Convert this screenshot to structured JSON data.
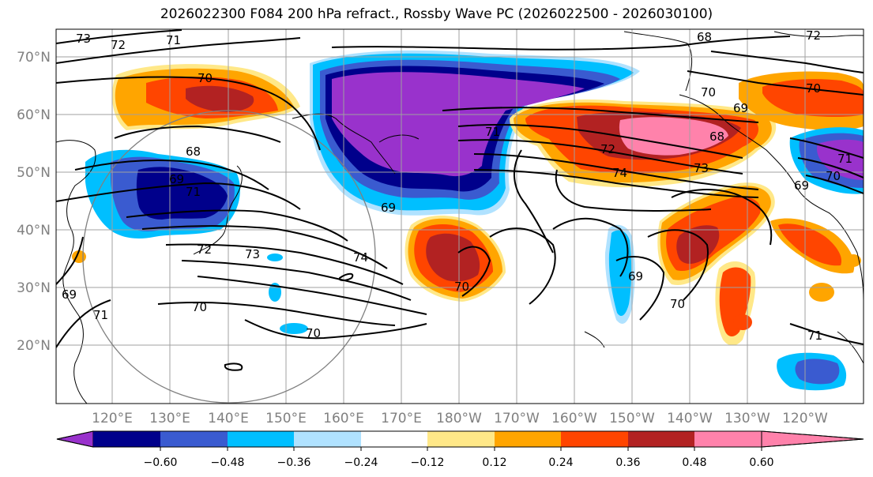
{
  "title": "2026022300 F084 200 hPa refract., Rossby Wave PC (2026022500 - 2026030100)",
  "lat_labels": [
    "70°N",
    "60°N",
    "50°N",
    "40°N",
    "30°N",
    "20°N"
  ],
  "lon_labels": [
    "120°E",
    "130°E",
    "140°E",
    "150°E",
    "160°E",
    "170°E",
    "180°W",
    "170°W",
    "160°W",
    "150°W",
    "140°W",
    "130°W",
    "120°W"
  ],
  "colorbar": {
    "colors": [
      "#9932cc",
      "#00008b",
      "#3a5bd0",
      "#00bfff",
      "#b0e2ff",
      "#ffffff",
      "#ffe888",
      "#ffa500",
      "#ff4500",
      "#b22222",
      "#ff82ab"
    ],
    "tick_labels": [
      "−0.60",
      "−0.48",
      "−0.36",
      "−0.24",
      "−0.12",
      "0.12",
      "0.24",
      "0.36",
      "0.48",
      "0.60"
    ]
  },
  "contour_labels": [
    "73",
    "72",
    "71",
    "70",
    "68",
    "69",
    "71",
    "72",
    "73",
    "74",
    "70",
    "69",
    "71",
    "69",
    "70",
    "71",
    "72",
    "74",
    "73",
    "69",
    "68",
    "70",
    "70",
    "69",
    "70",
    "71",
    "70",
    "69",
    "68",
    "72",
    "70",
    "71"
  ]
}
